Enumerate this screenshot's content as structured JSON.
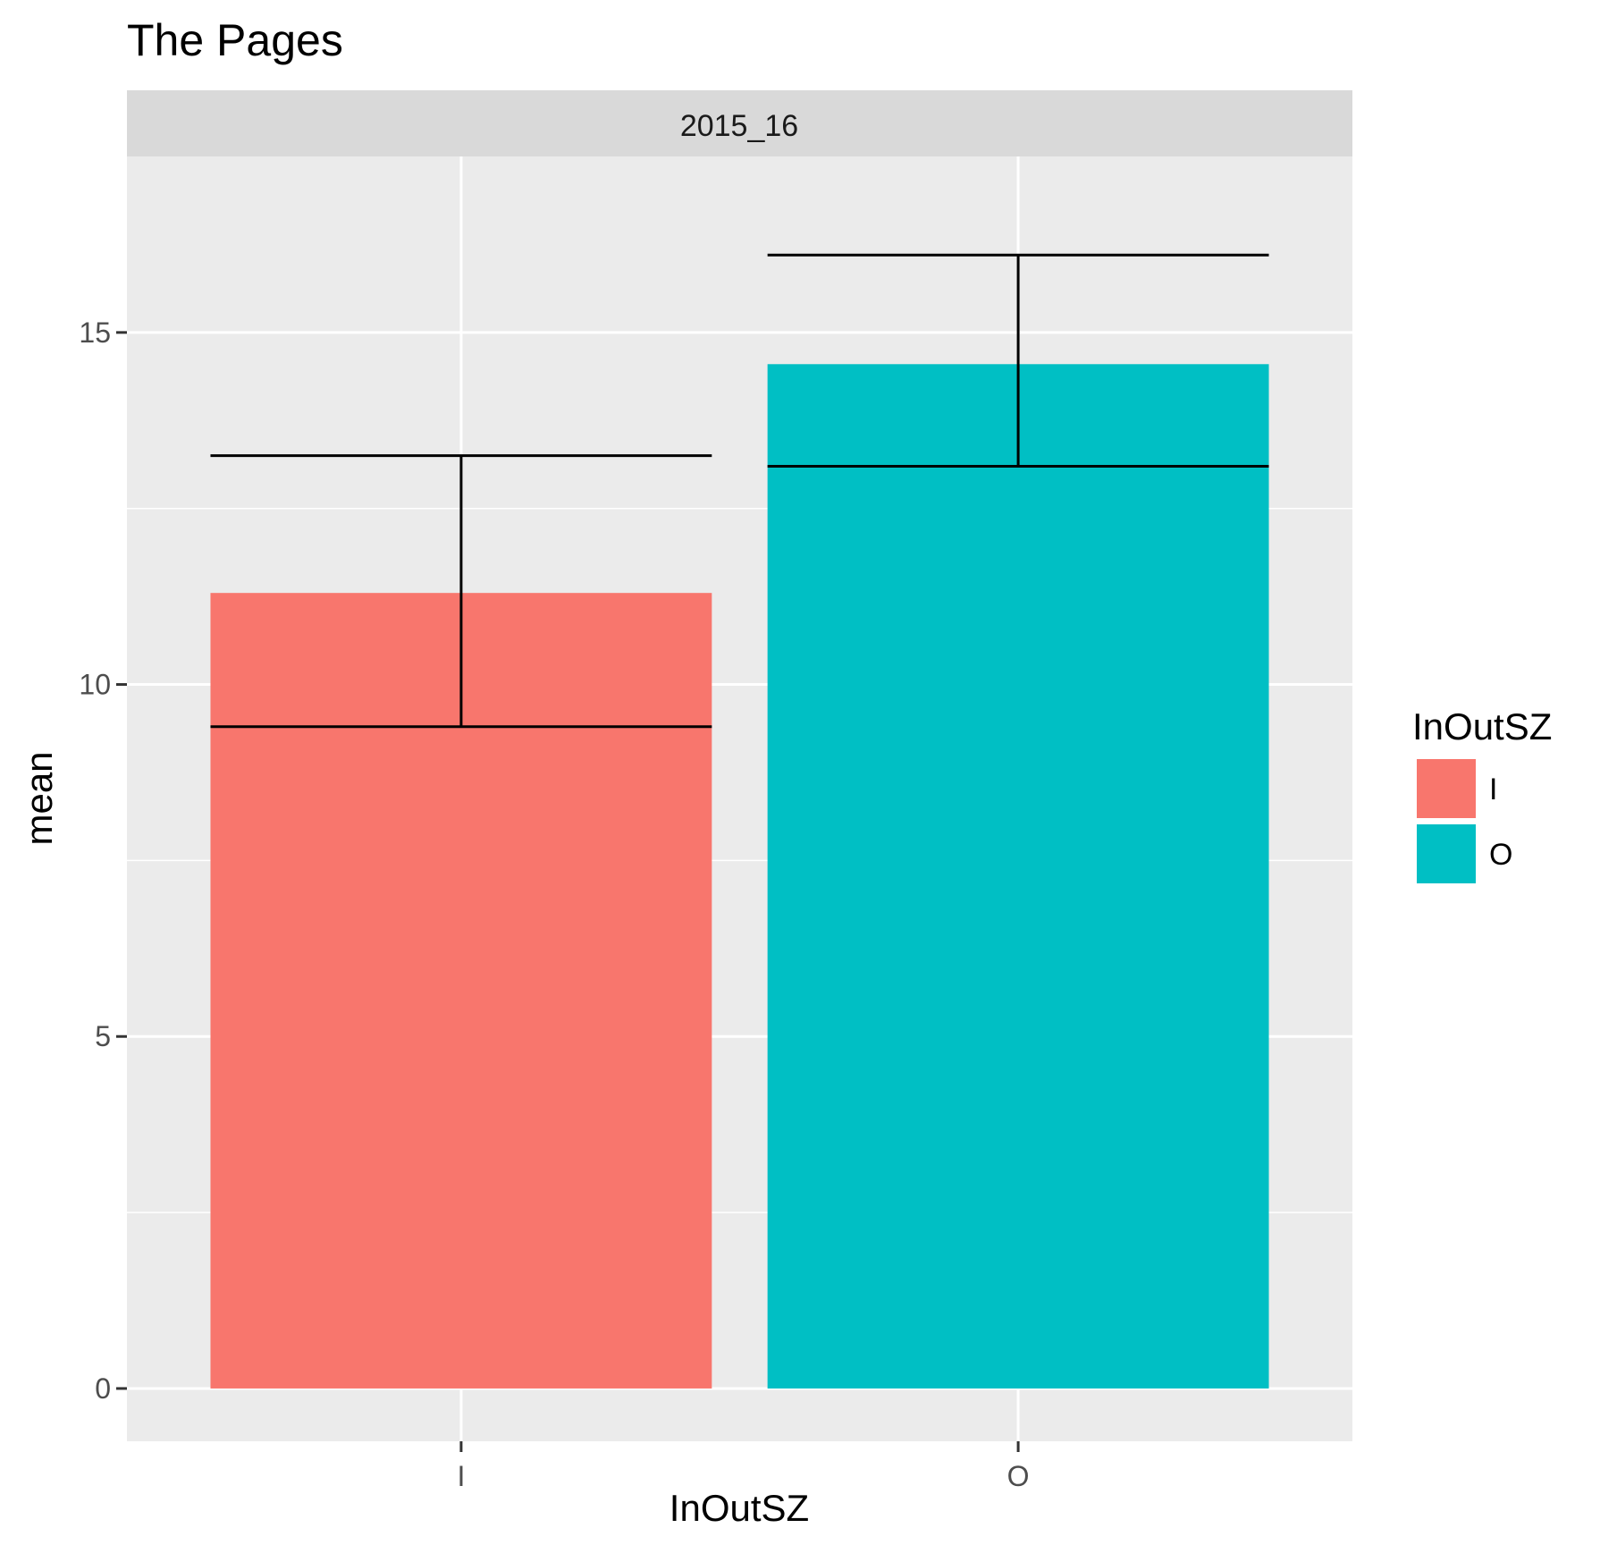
{
  "chart_data": {
    "type": "bar",
    "title": "The Pages",
    "facet": "2015_16",
    "xlabel": "InOutSZ",
    "ylabel": "mean",
    "categories": [
      "I",
      "O"
    ],
    "values": [
      11.3,
      14.55
    ],
    "error_bars": [
      {
        "low": 9.4,
        "high": 13.25
      },
      {
        "low": 13.1,
        "high": 16.1
      }
    ],
    "colors": [
      "#F8766D",
      "#00BFC4"
    ],
    "ylim": [
      -0.75,
      17.5
    ],
    "yticks": [
      0,
      5,
      10,
      15
    ],
    "grid": true,
    "legend": {
      "title": "InOutSZ",
      "position": "right",
      "entries": [
        "I",
        "O"
      ]
    }
  }
}
